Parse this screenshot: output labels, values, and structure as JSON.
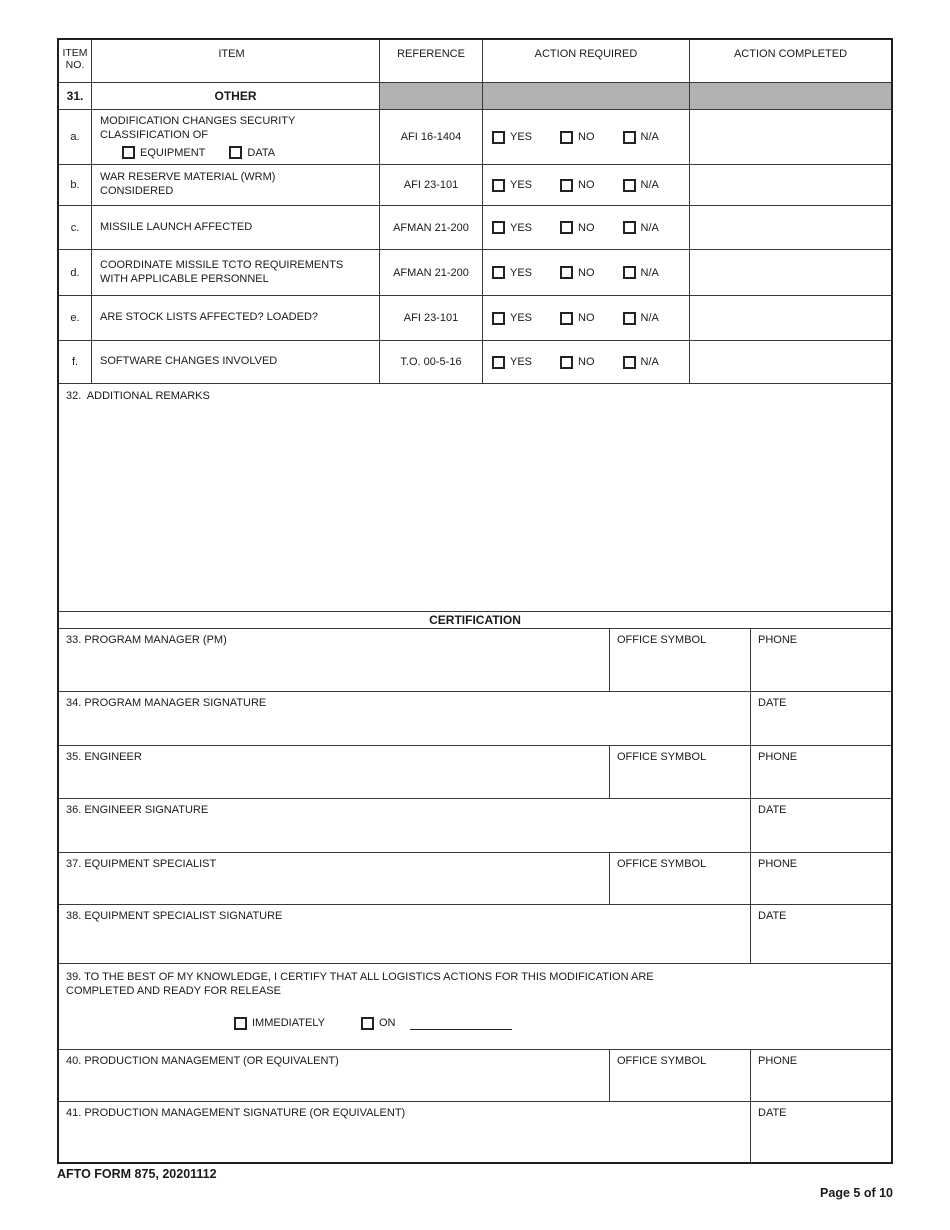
{
  "items_table": {
    "headers": {
      "item_no": "ITEM NO.",
      "item": "ITEM",
      "reference": "REFERENCE",
      "action_required": "ACTION REQUIRED",
      "action_completed": "ACTION COMPLETED"
    },
    "section": {
      "no": "31.",
      "title": "OTHER"
    },
    "action_options": [
      "YES",
      "NO",
      "N/A"
    ],
    "rows": [
      {
        "no": "a.",
        "item": "MODIFICATION CHANGES SECURITY\nCLASSIFICATION OF",
        "item_checkboxes": [
          "EQUIPMENT",
          "DATA"
        ],
        "reference": "AFI 16-1404"
      },
      {
        "no": "b.",
        "item": "WAR RESERVE MATERIAL (WRM)\nCONSIDERED",
        "reference": "AFI 23-101"
      },
      {
        "no": "c.",
        "item": "MISSILE LAUNCH AFFECTED",
        "reference": "AFMAN 21-200"
      },
      {
        "no": "d.",
        "item": "COORDINATE MISSILE TCTO REQUIREMENTS\nWITH APPLICABLE PERSONNEL",
        "reference": "AFMAN 21-200"
      },
      {
        "no": "e.",
        "item": "ARE STOCK LISTS AFFECTED? LOADED?",
        "reference": "AFI 23-101"
      },
      {
        "no": "f.",
        "item": "SOFTWARE CHANGES INVOLVED",
        "reference": "T.O. 00-5-16"
      }
    ],
    "remarks_label": "32.  ADDITIONAL REMARKS"
  },
  "certification": {
    "title": "CERTIFICATION",
    "office_symbol_label": "OFFICE SYMBOL",
    "phone_label": "PHONE",
    "date_label": "DATE",
    "row33_label": "33. PROGRAM MANAGER (PM)",
    "row34_label": "34. PROGRAM MANAGER SIGNATURE",
    "row35_label": "35. ENGINEER",
    "row36_label": "36. ENGINEER SIGNATURE",
    "row37_label": "37. EQUIPMENT SPECIALIST",
    "row38_label": "38. EQUIPMENT SPECIALIST SIGNATURE",
    "row39_statement": "39. TO THE BEST OF MY KNOWLEDGE, I CERTIFY THAT ALL LOGISTICS ACTIONS FOR THIS MODIFICATION ARE\nCOMPLETED AND READY FOR RELEASE",
    "row39_checkboxes": [
      "IMMEDIATELY",
      "ON"
    ],
    "row40_label": "40. PRODUCTION MANAGEMENT (OR EQUIVALENT)",
    "row41_label": "41. PRODUCTION MANAGEMENT SIGNATURE (OR EQUIVALENT)"
  },
  "footer": {
    "form_id": "AFTO FORM 875, 20201112",
    "page_indicator": "Page 5 of 10"
  },
  "colors": {
    "shaded_row": "#b2b2b2",
    "border": "#3a3a3a"
  }
}
